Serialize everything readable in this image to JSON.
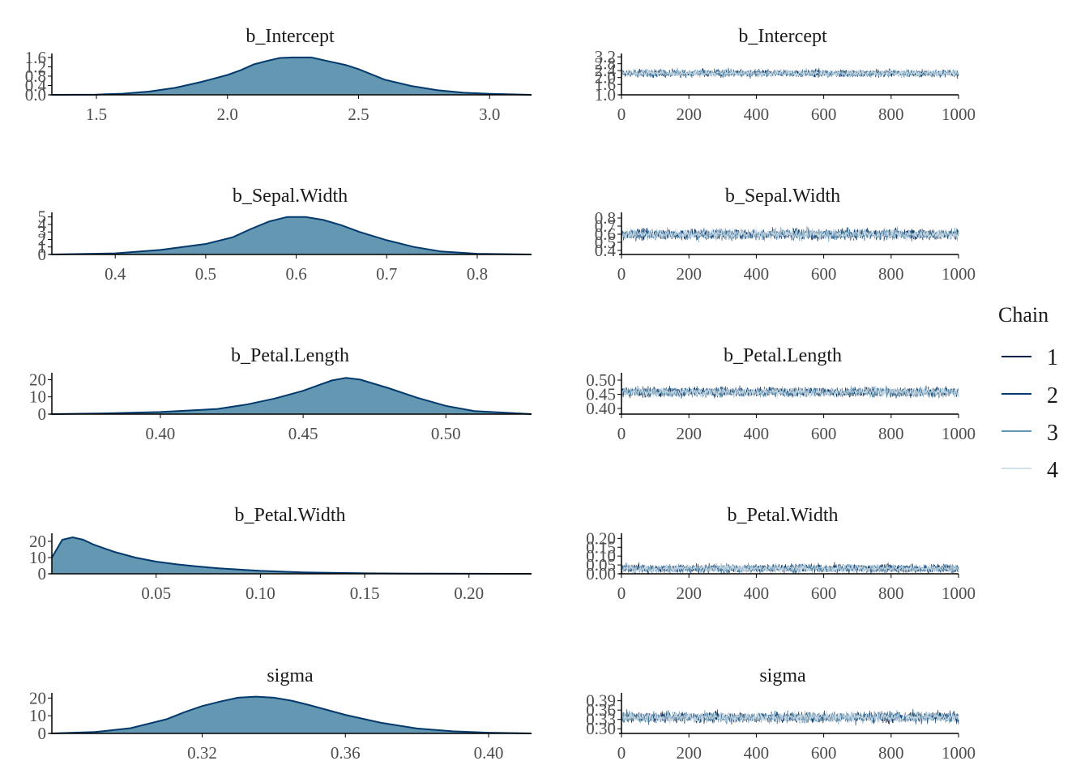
{
  "legend": {
    "title": "Chain",
    "entries": [
      {
        "label": "1",
        "color": "#011f4b"
      },
      {
        "label": "2",
        "color": "#03396c"
      },
      {
        "label": "3",
        "color": "#6497b1"
      },
      {
        "label": "4",
        "color": "#d1e1ec"
      }
    ]
  },
  "colors": {
    "density_fill": "#6497b1",
    "density_line": "#03396c",
    "axis": "#000000"
  },
  "chart_data": [
    {
      "type": "area",
      "title": "b_Intercept",
      "xlim": [
        1.33,
        3.16
      ],
      "ylim": [
        0,
        1.7
      ],
      "x_ticks": [
        1.5,
        2.0,
        2.5,
        3.0
      ],
      "x_tick_labels": [
        "1.5",
        "2.0",
        "2.5",
        "3.0"
      ],
      "y_ticks": [
        0.0,
        0.4,
        0.8,
        1.2,
        1.6
      ],
      "y_tick_labels": [
        "0.0",
        "0.4",
        "0.8",
        "1.2",
        "1.6"
      ],
      "x": [
        1.33,
        1.5,
        1.6,
        1.7,
        1.8,
        1.9,
        2.0,
        2.05,
        2.1,
        2.15,
        2.2,
        2.25,
        2.32,
        2.38,
        2.45,
        2.5,
        2.6,
        2.7,
        2.8,
        2.9,
        3.0,
        3.16
      ],
      "y": [
        0.0,
        0.01,
        0.05,
        0.14,
        0.3,
        0.55,
        0.85,
        1.05,
        1.3,
        1.45,
        1.58,
        1.6,
        1.6,
        1.45,
        1.28,
        1.1,
        0.65,
        0.38,
        0.2,
        0.09,
        0.04,
        0.0
      ]
    },
    {
      "type": "line",
      "title": "b_Intercept",
      "xlim": [
        0,
        1000
      ],
      "ylim": [
        1.0,
        3.3
      ],
      "x_ticks": [
        0,
        200,
        400,
        600,
        800,
        1000
      ],
      "x_tick_labels": [
        "0",
        "200",
        "400",
        "600",
        "800",
        "1000"
      ],
      "y_ticks": [
        1.0,
        1.6,
        2.0,
        2.4,
        2.8,
        3.2
      ],
      "y_tick_labels": [
        "1.0",
        "1.6",
        "2.0",
        "2.4",
        "2.8",
        "3.2"
      ],
      "iterations": 1000,
      "center": 2.25,
      "spread": 0.22
    },
    {
      "type": "area",
      "title": "b_Sepal.Width",
      "xlim": [
        0.33,
        0.86
      ],
      "ylim": [
        0,
        5.4
      ],
      "x_ticks": [
        0.4,
        0.5,
        0.6,
        0.7,
        0.8
      ],
      "x_tick_labels": [
        "0.4",
        "0.5",
        "0.6",
        "0.7",
        "0.8"
      ],
      "y_ticks": [
        0,
        1,
        2,
        3,
        4,
        5
      ],
      "y_tick_labels": [
        "0",
        "1",
        "2",
        "3",
        "4",
        "5"
      ],
      "x": [
        0.33,
        0.4,
        0.45,
        0.5,
        0.53,
        0.55,
        0.57,
        0.59,
        0.61,
        0.63,
        0.65,
        0.67,
        0.7,
        0.73,
        0.76,
        0.8,
        0.86
      ],
      "y": [
        0.0,
        0.15,
        0.6,
        1.4,
        2.3,
        3.4,
        4.4,
        5.0,
        5.0,
        4.6,
        3.9,
        3.0,
        1.9,
        1.0,
        0.4,
        0.1,
        0.0
      ]
    },
    {
      "type": "line",
      "title": "b_Sepal.Width",
      "xlim": [
        0,
        1000
      ],
      "ylim": [
        0.35,
        0.85
      ],
      "x_ticks": [
        0,
        200,
        400,
        600,
        800,
        1000
      ],
      "x_tick_labels": [
        "0",
        "200",
        "400",
        "600",
        "800",
        "1000"
      ],
      "y_ticks": [
        0.4,
        0.5,
        0.6,
        0.7,
        0.8
      ],
      "y_tick_labels": [
        "0.4",
        "0.5",
        "0.6",
        "0.7",
        "0.8"
      ],
      "iterations": 1000,
      "center": 0.6,
      "spread": 0.07
    },
    {
      "type": "area",
      "title": "b_Petal.Length",
      "xlim": [
        0.362,
        0.53
      ],
      "ylim": [
        0,
        23
      ],
      "x_ticks": [
        0.4,
        0.45,
        0.5
      ],
      "x_tick_labels": [
        "0.40",
        "0.45",
        "0.50"
      ],
      "y_ticks": [
        0,
        10,
        20
      ],
      "y_tick_labels": [
        "0",
        "10",
        "20"
      ],
      "x": [
        0.362,
        0.38,
        0.4,
        0.42,
        0.43,
        0.44,
        0.45,
        0.455,
        0.46,
        0.465,
        0.47,
        0.48,
        0.49,
        0.5,
        0.51,
        0.53
      ],
      "y": [
        0.0,
        0.4,
        1.2,
        3.0,
        5.5,
        9.0,
        13.5,
        16.5,
        19.5,
        21.0,
        20.0,
        15.0,
        9.5,
        4.8,
        1.8,
        0.0
      ]
    },
    {
      "type": "line",
      "title": "b_Petal.Length",
      "xlim": [
        0,
        1000
      ],
      "ylim": [
        0.38,
        0.52
      ],
      "x_ticks": [
        0,
        200,
        400,
        600,
        800,
        1000
      ],
      "x_tick_labels": [
        "0",
        "200",
        "400",
        "600",
        "800",
        "1000"
      ],
      "y_ticks": [
        0.4,
        0.45,
        0.5
      ],
      "y_tick_labels": [
        "0.40",
        "0.45",
        "0.50"
      ],
      "iterations": 1000,
      "center": 0.458,
      "spread": 0.018
    },
    {
      "type": "area",
      "title": "b_Petal.Width",
      "xlim": [
        0.0,
        0.23
      ],
      "ylim": [
        0,
        24
      ],
      "x_ticks": [
        0.05,
        0.1,
        0.15,
        0.2
      ],
      "x_tick_labels": [
        "0.05",
        "0.10",
        "0.15",
        "0.20"
      ],
      "y_ticks": [
        0,
        10,
        20
      ],
      "y_tick_labels": [
        "0",
        "10",
        "20"
      ],
      "x": [
        0.0,
        0.005,
        0.01,
        0.015,
        0.02,
        0.03,
        0.04,
        0.05,
        0.06,
        0.07,
        0.08,
        0.1,
        0.12,
        0.15,
        0.18,
        0.23
      ],
      "y": [
        10.0,
        21.0,
        22.5,
        21.0,
        18.0,
        13.5,
        10.0,
        7.5,
        5.8,
        4.5,
        3.4,
        1.8,
        0.9,
        0.3,
        0.1,
        0.0
      ]
    },
    {
      "type": "line",
      "title": "b_Petal.Width",
      "xlim": [
        0,
        1000
      ],
      "ylim": [
        0.0,
        0.22
      ],
      "x_ticks": [
        0,
        200,
        400,
        600,
        800,
        1000
      ],
      "x_tick_labels": [
        "0",
        "200",
        "400",
        "600",
        "800",
        "1000"
      ],
      "y_ticks": [
        0.0,
        0.05,
        0.1,
        0.15,
        0.2
      ],
      "y_tick_labels": [
        "0.00",
        "0.05",
        "0.10",
        "0.15",
        "0.20"
      ],
      "iterations": 1000,
      "center": 0.03,
      "spread": 0.025
    },
    {
      "type": "area",
      "title": "sigma",
      "xlim": [
        0.278,
        0.412
      ],
      "ylim": [
        0,
        22
      ],
      "x_ticks": [
        0.32,
        0.36,
        0.4
      ],
      "x_tick_labels": [
        "0.32",
        "0.36",
        "0.40"
      ],
      "y_ticks": [
        0,
        10,
        20
      ],
      "y_tick_labels": [
        "0",
        "10",
        "20"
      ],
      "x": [
        0.278,
        0.29,
        0.3,
        0.31,
        0.315,
        0.32,
        0.325,
        0.33,
        0.335,
        0.34,
        0.345,
        0.35,
        0.36,
        0.37,
        0.38,
        0.39,
        0.4,
        0.412
      ],
      "y": [
        0.0,
        0.8,
        3.0,
        8.0,
        12.0,
        15.5,
        18.0,
        20.2,
        20.8,
        20.2,
        18.5,
        16.0,
        10.5,
        6.0,
        2.8,
        1.2,
        0.4,
        0.0
      ]
    },
    {
      "type": "line",
      "title": "sigma",
      "xlim": [
        0,
        1000
      ],
      "ylim": [
        0.285,
        0.41
      ],
      "x_ticks": [
        0,
        200,
        400,
        600,
        800,
        1000
      ],
      "x_tick_labels": [
        "0",
        "200",
        "400",
        "600",
        "800",
        "1000"
      ],
      "y_ticks": [
        0.3,
        0.33,
        0.36,
        0.39
      ],
      "y_tick_labels": [
        "0.30",
        "0.33",
        "0.36",
        "0.39"
      ],
      "iterations": 1000,
      "center": 0.337,
      "spread": 0.018
    }
  ]
}
